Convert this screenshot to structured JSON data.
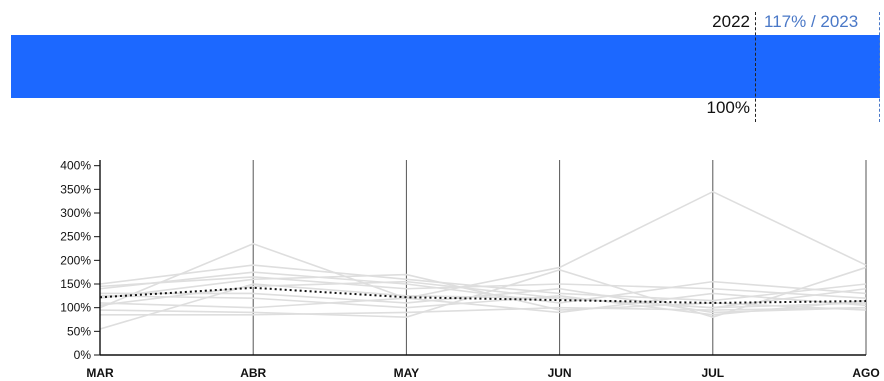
{
  "top_bar": {
    "year_label": "2022",
    "compare_label": "117% / 2023",
    "baseline_label": "100%",
    "baseline_value": 100,
    "compare_value": 117,
    "bar_color": "#1c68ff"
  },
  "chart_data": {
    "type": "line",
    "categories": [
      "MAR",
      "ABR",
      "MAY",
      "JUN",
      "JUL",
      "AGO"
    ],
    "y_ticks": [
      "0%",
      "50%",
      "100%",
      "150%",
      "200%",
      "250%",
      "300%",
      "350%",
      "400%"
    ],
    "ylim": [
      0,
      420
    ],
    "y_unit": "%",
    "highlight": {
      "style": "dotted",
      "color": "#111111",
      "values": [
        122,
        142,
        122,
        116,
        110,
        114
      ]
    },
    "background_color": "#dedede",
    "background_series": [
      [
        55,
        150,
        125,
        120,
        100,
        110
      ],
      [
        100,
        235,
        120,
        185,
        345,
        190
      ],
      [
        95,
        90,
        80,
        180,
        80,
        185
      ],
      [
        120,
        160,
        170,
        95,
        110,
        95
      ],
      [
        140,
        175,
        150,
        110,
        155,
        130
      ],
      [
        130,
        130,
        110,
        140,
        90,
        100
      ],
      [
        110,
        100,
        120,
        90,
        130,
        105
      ],
      [
        150,
        190,
        160,
        130,
        115,
        150
      ],
      [
        85,
        85,
        90,
        100,
        95,
        100
      ],
      [
        145,
        165,
        140,
        150,
        140,
        120
      ],
      [
        125,
        120,
        100,
        125,
        85,
        115
      ],
      [
        105,
        145,
        155,
        120,
        100,
        140
      ]
    ]
  }
}
